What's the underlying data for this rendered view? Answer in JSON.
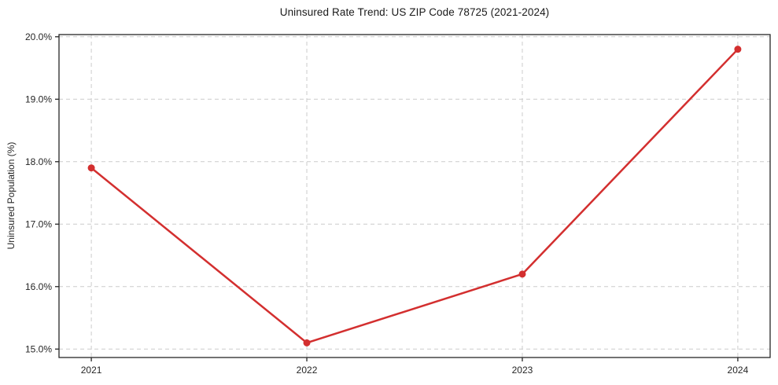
{
  "chart_data": {
    "type": "line",
    "title": "Uninsured Rate Trend: US ZIP Code 78725 (2021-2024)",
    "xlabel": "",
    "ylabel": "Uninsured Population (%)",
    "x": [
      2021,
      2022,
      2023,
      2024
    ],
    "x_tick_labels": [
      "2021",
      "2022",
      "2023",
      "2024"
    ],
    "values": [
      17.9,
      15.1,
      16.2,
      19.8
    ],
    "y_ticks": [
      15.0,
      16.0,
      17.0,
      18.0,
      19.0,
      20.0
    ],
    "y_tick_labels": [
      "15.0%",
      "16.0%",
      "17.0%",
      "18.0%",
      "19.0%",
      "20.0%"
    ],
    "xlim": [
      2020.85,
      2024.15
    ],
    "ylim": [
      14.865,
      20.035
    ],
    "grid": true,
    "grid_style": "dashed",
    "legend_position": "none",
    "colors": {
      "line": "#d32f2f",
      "marker": "#d32f2f",
      "grid": "#cccccc",
      "spine": "#262626",
      "tick_text": "#262626",
      "title_text": "#1a1a1a",
      "background": "#ffffff"
    }
  }
}
